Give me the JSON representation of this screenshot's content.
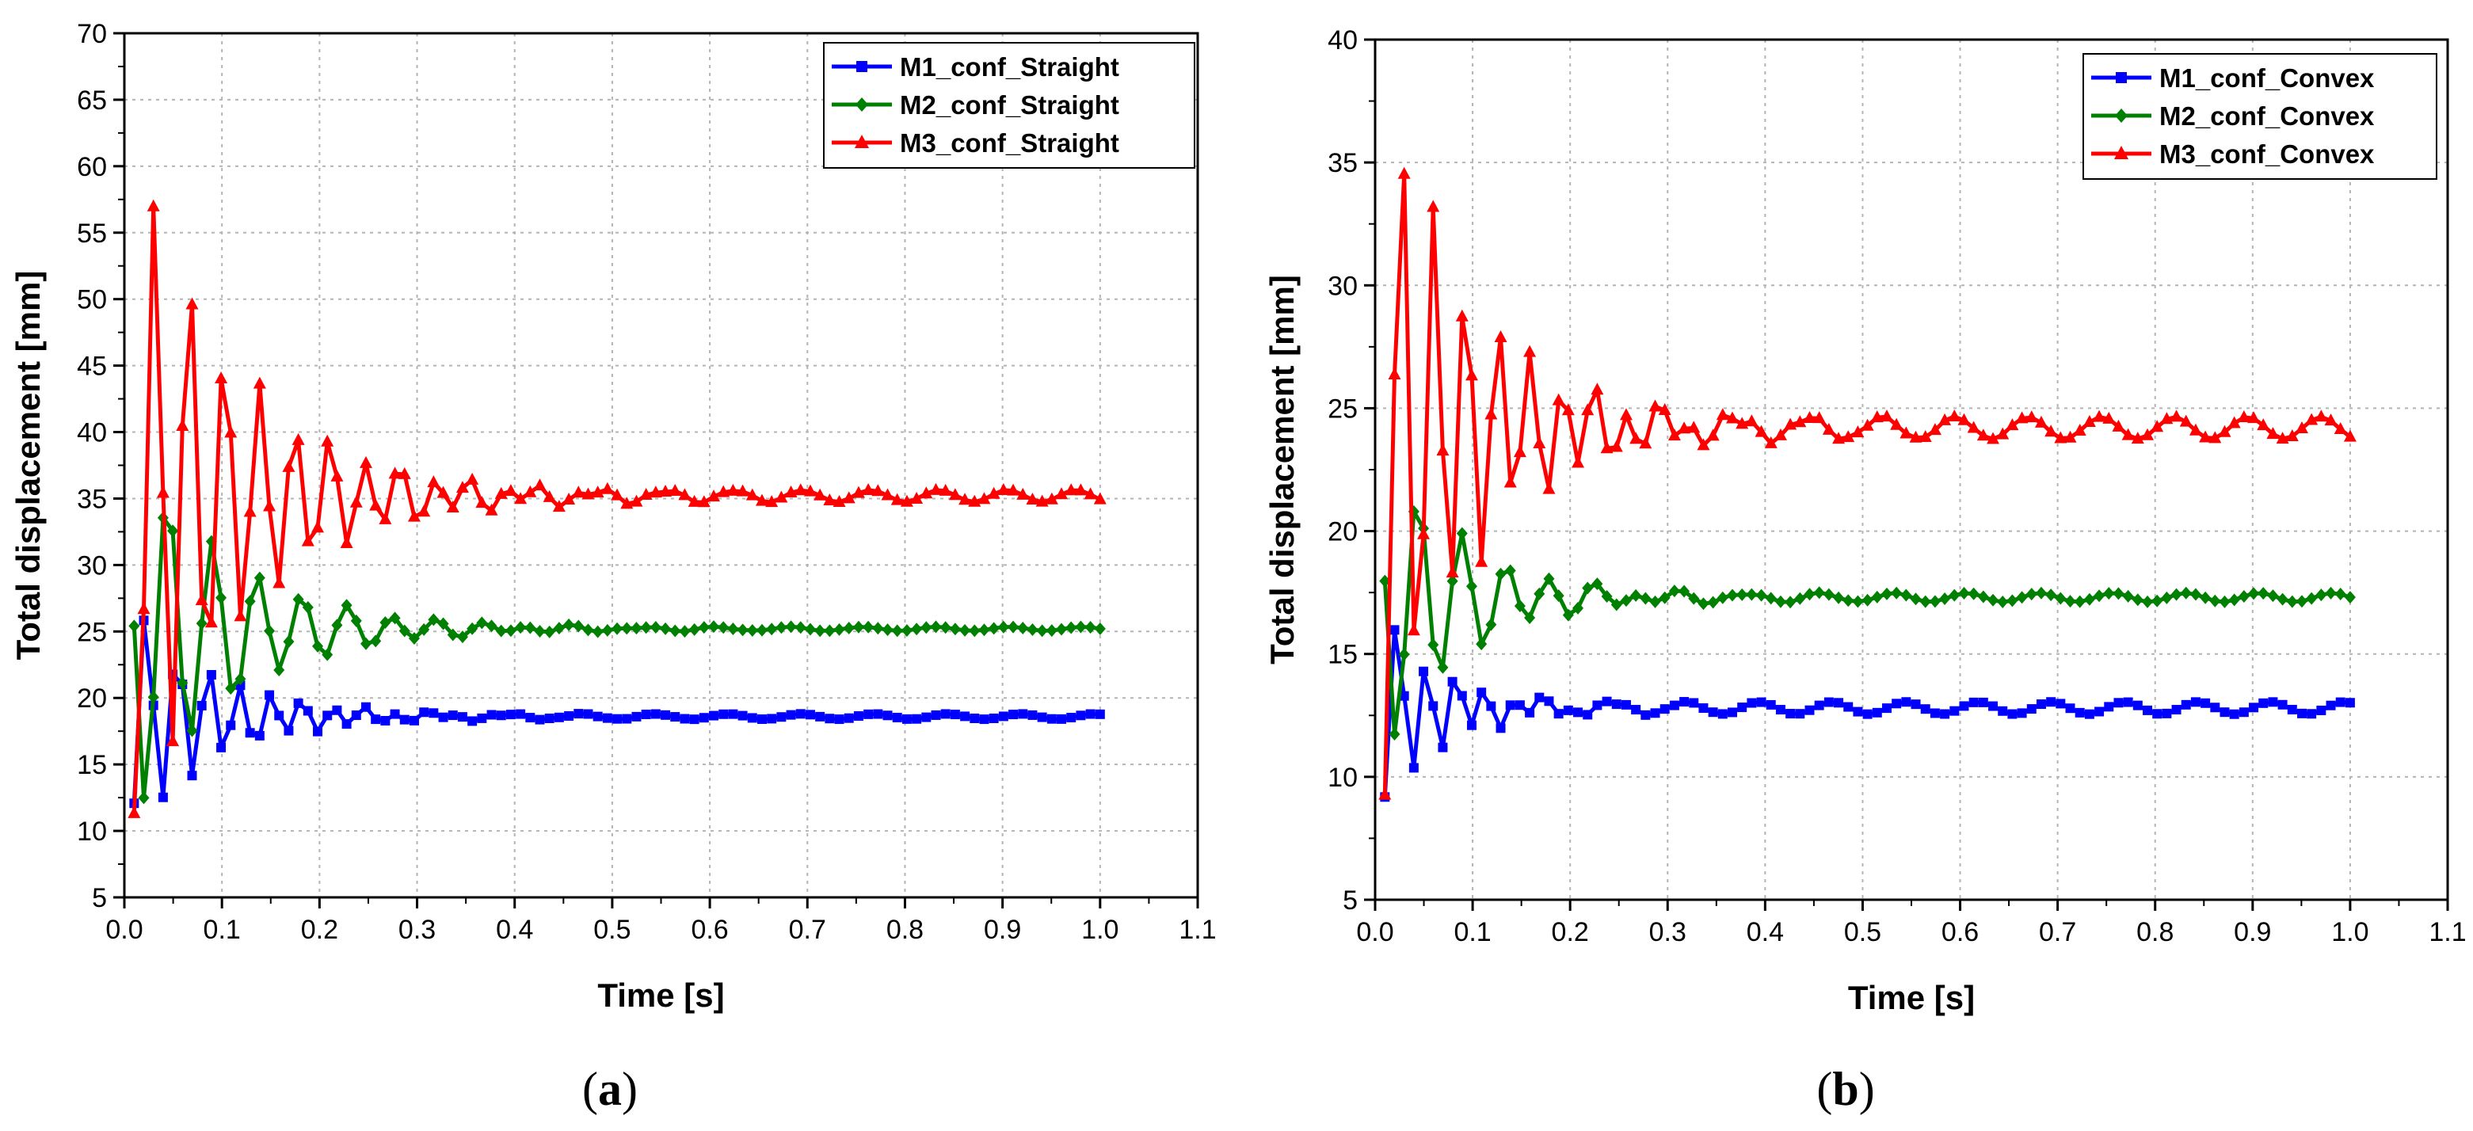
{
  "chart_data": [
    {
      "type": "line",
      "panel": "(a)",
      "caption_letter": "a",
      "xlabel": "Time [s]",
      "ylabel": "Total displacement [mm]",
      "xlim": [
        0.0,
        1.1
      ],
      "ylim": [
        5,
        70
      ],
      "xticks": [
        0.0,
        0.1,
        0.2,
        0.3,
        0.4,
        0.5,
        0.6,
        0.7,
        0.8,
        0.9,
        1.0,
        1.1
      ],
      "xtick_labels": [
        "0.0",
        "0.1",
        "0.2",
        "0.3",
        "0.4",
        "0.5",
        "0.6",
        "0.7",
        "0.8",
        "0.9",
        "1.0",
        "1.1"
      ],
      "yticks": [
        5,
        10,
        15,
        20,
        25,
        30,
        35,
        40,
        45,
        50,
        55,
        60,
        65,
        70
      ],
      "ytick_labels": [
        "5",
        "10",
        "15",
        "20",
        "25",
        "30",
        "35",
        "40",
        "45",
        "50",
        "55",
        "60",
        "65",
        "70"
      ],
      "grid": true,
      "legend_position": "top-right",
      "series": [
        {
          "name": "M1_conf_Straight",
          "color": "#0000ff",
          "marker": "square",
          "x_start": 0.01,
          "x_end": 1.0,
          "envelope": {
            "base": 18.6,
            "amp0": 10.0,
            "decay": 0.085,
            "period": 0.032,
            "phase": 1.9,
            "residual_amp": 0.2,
            "residual_period": 0.075
          }
        },
        {
          "name": "M2_conf_Straight",
          "color": "#008000",
          "marker": "diamond",
          "x_start": 0.01,
          "x_end": 1.0,
          "envelope": {
            "base": 25.2,
            "amp0": 16.0,
            "decay": 0.1,
            "period": 0.046,
            "phase": 0.2,
            "residual_amp": 0.15,
            "residual_period": 0.075
          }
        },
        {
          "name": "M3_conf_Straight",
          "color": "#ff0000",
          "marker": "triangle",
          "x_start": 0.01,
          "x_end": 1.0,
          "envelope": {
            "base": 35.2,
            "amp0": 30.0,
            "decay": 0.105,
            "period": 0.036,
            "phase": 0.9,
            "residual_amp": 0.45,
            "residual_period": 0.07
          }
        }
      ]
    },
    {
      "type": "line",
      "panel": "(b)",
      "caption_letter": "b",
      "xlabel": "Time [s]",
      "ylabel": "Total displacement [mm]",
      "xlim": [
        0.0,
        1.1
      ],
      "ylim": [
        5,
        40
      ],
      "xticks": [
        0.0,
        0.1,
        0.2,
        0.3,
        0.4,
        0.5,
        0.6,
        0.7,
        0.8,
        0.9,
        1.0,
        1.1
      ],
      "xtick_labels": [
        "0.0",
        "0.1",
        "0.2",
        "0.3",
        "0.4",
        "0.5",
        "0.6",
        "0.7",
        "0.8",
        "0.9",
        "1.0",
        "1.1"
      ],
      "yticks": [
        5,
        10,
        15,
        20,
        25,
        30,
        35,
        40
      ],
      "ytick_labels": [
        "5",
        "10",
        "15",
        "20",
        "25",
        "30",
        "35",
        "40"
      ],
      "grid": true,
      "legend_position": "top-right",
      "series": [
        {
          "name": "M1_conf_Convex",
          "color": "#0000ff",
          "marker": "square",
          "x_start": 0.01,
          "x_end": 1.0,
          "envelope": {
            "base": 12.8,
            "amp0": 5.0,
            "decay": 0.06,
            "period": 0.03,
            "phase": 1.5,
            "residual_amp": 0.25,
            "residual_period": 0.075
          }
        },
        {
          "name": "M2_conf_Convex",
          "color": "#008000",
          "marker": "diamond",
          "x_start": 0.01,
          "x_end": 1.0,
          "envelope": {
            "base": 17.3,
            "amp0": 7.5,
            "decay": 0.08,
            "period": 0.045,
            "phase": 0.1,
            "residual_amp": 0.18,
            "residual_period": 0.075
          }
        },
        {
          "name": "M3_conf_Convex",
          "color": "#ff0000",
          "marker": "triangle",
          "x_start": 0.01,
          "x_end": 1.0,
          "envelope": {
            "base": 24.2,
            "amp0": 17.0,
            "decay": 0.09,
            "period": 0.033,
            "phase": 1.1,
            "residual_amp": 0.45,
            "residual_period": 0.075
          }
        }
      ]
    }
  ]
}
